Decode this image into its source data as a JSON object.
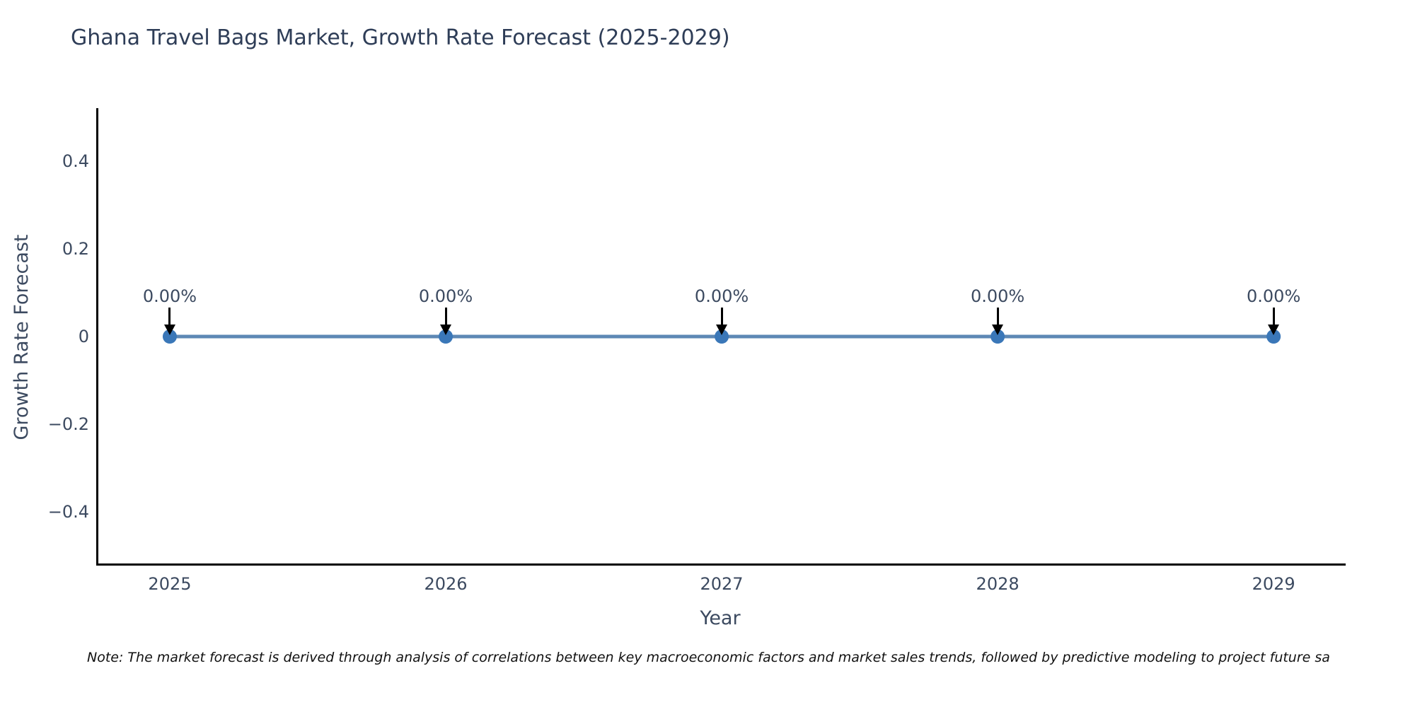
{
  "chart_data": {
    "type": "line",
    "title": "Ghana Travel Bags Market, Growth Rate Forecast (2025-2029)",
    "xlabel": "Year",
    "ylabel": "Growth Rate Forecast",
    "x": [
      2025,
      2026,
      2027,
      2028,
      2029
    ],
    "series": [
      {
        "name": "Growth Rate Forecast",
        "values": [
          0,
          0,
          0,
          0,
          0
        ]
      }
    ],
    "point_labels": [
      "0.00%",
      "0.00%",
      "0.00%",
      "0.00%",
      "0.00%"
    ],
    "xticks": {
      "values": [
        2025,
        2026,
        2027,
        2028,
        2029
      ],
      "labels": [
        "2025",
        "2026",
        "2027",
        "2028",
        "2029"
      ]
    },
    "yticks": {
      "values": [
        0.4,
        0.2,
        0,
        -0.2,
        -0.4
      ],
      "labels": [
        "0.4",
        "0.2",
        "0",
        "−0.2",
        "−0.4"
      ]
    },
    "xlim": [
      2024.736,
      2029.256
    ],
    "ylim": [
      -0.52,
      0.52
    ],
    "grid": false,
    "legend": "none",
    "annotation_style": "down-arrow",
    "colors": {
      "line": "#5d88b5",
      "marker": "#3a77b8",
      "arrow": "#000000",
      "title_text": "#2e3d57",
      "axis_text": "#3c4a60",
      "spine": "#000000",
      "note_text": "#111111",
      "background": "#ffffff"
    },
    "note": "Note: The market forecast is derived through analysis of correlations between key macroeconomic factors and market sales trends, followed by predictive modeling to project future sa"
  }
}
